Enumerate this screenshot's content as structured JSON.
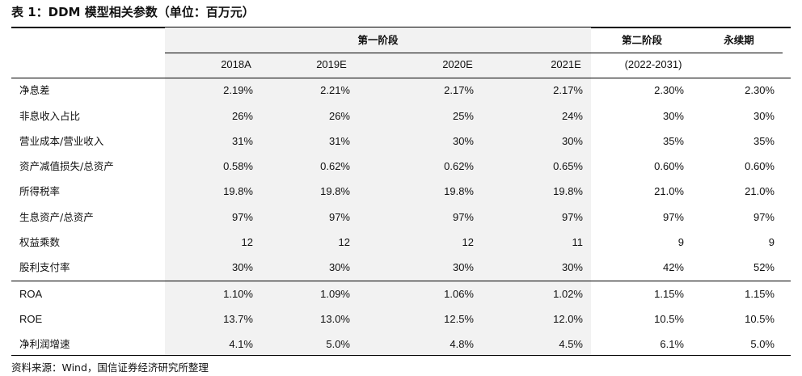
{
  "title": "表 1：DDM 模型相关参数（单位：百万元）",
  "header": {
    "stage1": "第一阶段",
    "stage2": "第二阶段",
    "perpetual": "永续期",
    "years": [
      "2018A",
      "2019E",
      "2020E",
      "2021E",
      "(2022-2031)"
    ]
  },
  "rows": [
    {
      "label": "净息差",
      "values": [
        "2.19%",
        "2.21%",
        "2.17%",
        "2.17%",
        "2.30%",
        "2.30%"
      ]
    },
    {
      "label": "非息收入占比",
      "values": [
        "26%",
        "26%",
        "25%",
        "24%",
        "30%",
        "30%"
      ]
    },
    {
      "label": "营业成本/营业收入",
      "values": [
        "31%",
        "31%",
        "30%",
        "30%",
        "35%",
        "35%"
      ]
    },
    {
      "label": "资产减值损失/总资产",
      "values": [
        "0.58%",
        "0.62%",
        "0.62%",
        "0.65%",
        "0.60%",
        "0.60%"
      ]
    },
    {
      "label": "所得税率",
      "values": [
        "19.8%",
        "19.8%",
        "19.8%",
        "19.8%",
        "21.0%",
        "21.0%"
      ]
    },
    {
      "label": "生息资产/总资产",
      "values": [
        "97%",
        "97%",
        "97%",
        "97%",
        "97%",
        "97%"
      ]
    },
    {
      "label": "权益乘数",
      "values": [
        "12",
        "12",
        "12",
        "11",
        "9",
        "9"
      ]
    },
    {
      "label": "股利支付率",
      "values": [
        "30%",
        "30%",
        "30%",
        "30%",
        "42%",
        "52%"
      ]
    },
    {
      "label": "ROA",
      "values": [
        "1.10%",
        "1.09%",
        "1.06%",
        "1.02%",
        "1.15%",
        "1.15%"
      ]
    },
    {
      "label": "ROE",
      "values": [
        "13.7%",
        "13.0%",
        "12.5%",
        "12.0%",
        "10.5%",
        "10.5%"
      ]
    },
    {
      "label": "净利润增速",
      "values": [
        "4.1%",
        "5.0%",
        "4.8%",
        "4.5%",
        "6.1%",
        "5.0%"
      ]
    }
  ],
  "source": "资料来源：Wind，国信证券经济研究所整理"
}
